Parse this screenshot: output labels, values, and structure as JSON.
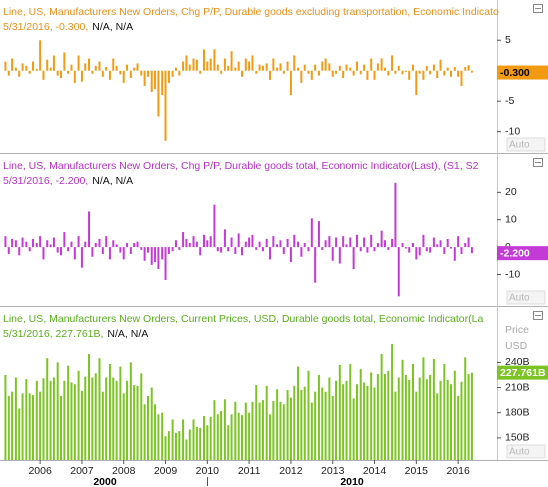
{
  "chart_data": {
    "type": "bar",
    "xlim": [
      2005.04,
      2016.93
    ],
    "xticks": [
      2006,
      2007,
      2008,
      2009,
      2010,
      2011,
      2012,
      2013,
      2014,
      2015,
      2016
    ],
    "decade_labels": [
      "2000",
      "2010"
    ],
    "x": [
      2005.17,
      2005.25,
      2005.33,
      2005.42,
      2005.5,
      2005.58,
      2005.67,
      2005.75,
      2005.83,
      2005.92,
      2006.0,
      2006.08,
      2006.17,
      2006.25,
      2006.33,
      2006.42,
      2006.5,
      2006.58,
      2006.67,
      2006.75,
      2006.83,
      2006.92,
      2007.0,
      2007.08,
      2007.17,
      2007.25,
      2007.33,
      2007.42,
      2007.5,
      2007.58,
      2007.67,
      2007.75,
      2007.83,
      2007.92,
      2008.0,
      2008.08,
      2008.17,
      2008.25,
      2008.33,
      2008.42,
      2008.5,
      2008.58,
      2008.67,
      2008.75,
      2008.83,
      2008.92,
      2009.0,
      2009.08,
      2009.17,
      2009.25,
      2009.33,
      2009.42,
      2009.5,
      2009.58,
      2009.67,
      2009.75,
      2009.83,
      2009.92,
      2010.0,
      2010.08,
      2010.17,
      2010.25,
      2010.33,
      2010.42,
      2010.5,
      2010.58,
      2010.67,
      2010.75,
      2010.83,
      2010.92,
      2011.0,
      2011.08,
      2011.17,
      2011.25,
      2011.33,
      2011.42,
      2011.5,
      2011.58,
      2011.67,
      2011.75,
      2011.83,
      2011.92,
      2012.0,
      2012.08,
      2012.17,
      2012.25,
      2012.33,
      2012.42,
      2012.5,
      2012.58,
      2012.67,
      2012.75,
      2012.83,
      2012.92,
      2013.0,
      2013.08,
      2013.17,
      2013.25,
      2013.33,
      2013.42,
      2013.5,
      2013.58,
      2013.67,
      2013.75,
      2013.83,
      2013.92,
      2014.0,
      2014.08,
      2014.17,
      2014.25,
      2014.33,
      2014.42,
      2014.5,
      2014.58,
      2014.67,
      2014.75,
      2014.83,
      2014.92,
      2015.0,
      2015.08,
      2015.17,
      2015.25,
      2015.33,
      2015.42,
      2015.5,
      2015.58,
      2015.67,
      2015.75,
      2015.83,
      2015.92,
      2016.0,
      2016.08,
      2016.17,
      2016.25,
      2016.33
    ],
    "panels": [
      {
        "title": "Line, US, Manufacturers New Orders, Chg P/P, Durable goods excluding transportation, Economic Indicator(Last)",
        "subtitle": "5/31/2016, -0.300,",
        "subtitle_extra": "N/A, N/A",
        "color": "#f29a12",
        "text_color": "#e8901a",
        "ylim": [
          -13.5,
          11.6
        ],
        "yticks": [
          5,
          -5,
          -10
        ],
        "last_value": {
          "value": -0.3,
          "label": "-0.300"
        },
        "auto_button": "Auto",
        "values": [
          1.5,
          -0.8,
          2.0,
          0.5,
          -1.0,
          1.2,
          0.8,
          -0.5,
          1.5,
          0.3,
          5.0,
          -1.5,
          1.8,
          0.5,
          2.5,
          -0.8,
          -1.2,
          3.0,
          -0.5,
          1.0,
          -2.0,
          2.5,
          -1.8,
          1.2,
          2.0,
          -0.5,
          0.8,
          1.5,
          -1.0,
          0.6,
          -1.5,
          2.0,
          0.8,
          -0.6,
          -2.0,
          1.0,
          -1.2,
          0.5,
          1.2,
          -0.8,
          -2.5,
          -1.0,
          -3.5,
          -3.0,
          -7.5,
          -4.0,
          -11.5,
          -2.0,
          -1.0,
          0.5,
          -0.8,
          1.5,
          2.5,
          1.0,
          2.0,
          1.8,
          -0.5,
          3.5,
          1.5,
          2.0,
          3.5,
          1.0,
          -0.5,
          2.0,
          0.8,
          3.2,
          0.5,
          1.5,
          -1.0,
          2.0,
          1.5,
          2.5,
          -0.5,
          1.0,
          0.8,
          1.2,
          -1.5,
          2.0,
          0.5,
          1.2,
          -0.5,
          1.5,
          -4.0,
          2.5,
          0.5,
          -2.0,
          1.0,
          -0.5,
          -1.5,
          1.0,
          -0.8,
          1.5,
          2.0,
          1.2,
          -1.0,
          -0.5,
          0.8,
          -1.2,
          1.0,
          0.5,
          -0.8,
          1.5,
          -0.6,
          1.0,
          -1.5,
          2.0,
          -1.5,
          1.2,
          2.0,
          0.5,
          -0.8,
          2.5,
          -0.5,
          0.8,
          -0.6,
          -0.2,
          -1.5,
          1.0,
          -4.0,
          -0.5,
          -1.5,
          0.8,
          -0.6,
          1.0,
          -1.2,
          1.8,
          -0.8,
          0.5,
          -1.0,
          0.6,
          -1.0,
          -2.5,
          0.6,
          0.9,
          -0.3
        ]
      },
      {
        "title": "Line, US, Manufacturers New Orders, Chg P/P, Durable goods total, Economic Indicator(Last), (S1, S2",
        "subtitle": "5/31/2016, -2.200,",
        "subtitle_extra": "N/A, N/A",
        "color": "#c43ad6",
        "text_color": "#b432c4",
        "ylim": [
          -21.5,
          34
        ],
        "yticks": [
          20,
          10,
          0,
          -10
        ],
        "last_value": {
          "value": -2.2,
          "label": "-2.200"
        },
        "auto_button": "Auto",
        "values": [
          4.0,
          -2.5,
          3.0,
          2.5,
          -3.0,
          3.5,
          2.0,
          -1.5,
          3.0,
          1.5,
          4.0,
          -4.5,
          2.5,
          1.0,
          3.5,
          -2.0,
          -3.0,
          5.5,
          -1.5,
          2.0,
          -4.5,
          4.0,
          -7.5,
          2.0,
          13.0,
          -3.5,
          1.5,
          3.0,
          -2.5,
          4.0,
          -4.5,
          2.5,
          1.0,
          -2.0,
          -4.5,
          1.5,
          -2.5,
          1.5,
          2.0,
          -1.0,
          -5.0,
          -2.0,
          -6.5,
          -5.5,
          -8.0,
          -4.5,
          -12.0,
          -2.5,
          -1.5,
          2.5,
          -1.0,
          5.5,
          3.0,
          1.5,
          4.0,
          2.0,
          -3.0,
          4.5,
          2.5,
          4.0,
          15.5,
          -1.5,
          -2.0,
          6.5,
          -1.5,
          3.5,
          -2.5,
          5.0,
          -3.0,
          2.0,
          3.5,
          4.5,
          -1.0,
          2.0,
          -1.5,
          3.0,
          -4.5,
          4.0,
          1.0,
          2.5,
          -2.5,
          3.0,
          -5.5,
          4.5,
          2.0,
          -3.5,
          1.5,
          -1.5,
          10.5,
          -13.0,
          9.5,
          -1.0,
          2.5,
          4.0,
          -5.0,
          3.5,
          -6.0,
          4.0,
          1.0,
          3.5,
          -8.0,
          4.5,
          -1.5,
          3.5,
          -2.0,
          4.5,
          -1.5,
          1.5,
          6.0,
          2.5,
          -1.0,
          3.0,
          23.5,
          -18.0,
          1.5,
          -0.5,
          -2.0,
          1.5,
          -4.5,
          -3.0,
          4.5,
          -1.5,
          -2.0,
          3.5,
          1.0,
          2.5,
          -2.5,
          3.0,
          -0.5,
          -5.0,
          4.0,
          -2.5,
          1.5,
          3.5,
          -2.2
        ]
      },
      {
        "title": "Line, US, Manufacturers New Orders, Current Prices, USD, Durable goods total, Economic Indicator(La",
        "subtitle": "5/31/2016, 227.761B,",
        "subtitle_extra": "N/A, N/A",
        "color": "#7cc424",
        "text_color": "#5aae1e",
        "y_axis_label": "Price",
        "y_axis_unit": "USD",
        "ylim": [
          123.6,
          306
        ],
        "yticks": [
          {
            "value": 240,
            "label": "240B"
          },
          {
            "value": 210,
            "label": "210B"
          },
          {
            "value": 180,
            "label": "180B"
          },
          {
            "value": 150,
            "label": "150B"
          }
        ],
        "last_value": {
          "value": 227.761,
          "label": "227.761B"
        },
        "auto_button": "Auto",
        "values": [
          225,
          200,
          205,
          222,
          185,
          203,
          220,
          203,
          201,
          218,
          205,
          221,
          245,
          218,
          222,
          240,
          200,
          218,
          236,
          216,
          214,
          230,
          206,
          223,
          250,
          222,
          227,
          245,
          205,
          222,
          238,
          222,
          218,
          235,
          203,
          218,
          240,
          213,
          212,
          227,
          190,
          200,
          210,
          190,
          178,
          180,
          152,
          158,
          172,
          156,
          158,
          172,
          148,
          160,
          172,
          163,
          162,
          176,
          165,
          175,
          195,
          178,
          182,
          196,
          165,
          178,
          193,
          180,
          177,
          192,
          180,
          193,
          213,
          192,
          195,
          212,
          178,
          194,
          208,
          193,
          190,
          207,
          198,
          212,
          235,
          207,
          211,
          230,
          192,
          205,
          225,
          210,
          205,
          222,
          200,
          218,
          237,
          214,
          218,
          238,
          197,
          214,
          232,
          216,
          212,
          228,
          210,
          226,
          250,
          226,
          230,
          262,
          205,
          222,
          243,
          225,
          219,
          238,
          205,
          222,
          246,
          220,
          225,
          244,
          203,
          218,
          238,
          219,
          214,
          230,
          200,
          217,
          246,
          226,
          227.761
        ]
      }
    ]
  }
}
